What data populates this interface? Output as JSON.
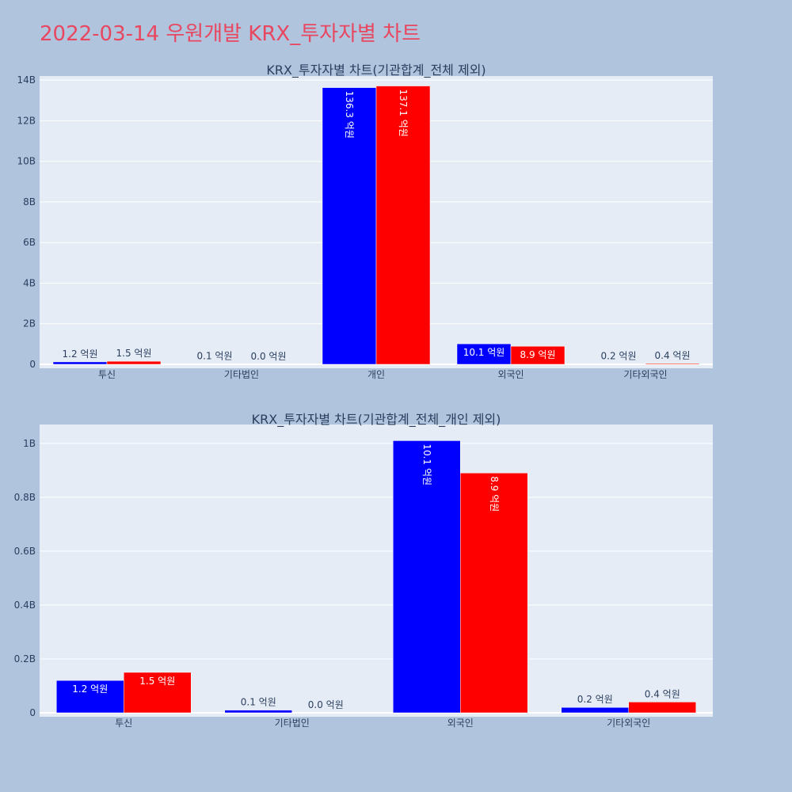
{
  "page": {
    "title": "2022-03-14 우원개발 KRX_투자자별 차트"
  },
  "colors": {
    "buy": "#0000ff",
    "sell": "#ff0000",
    "plot_bg": "#e5ecf6",
    "page_bg": "#b0c4de",
    "title": "#e8475f"
  },
  "chart_data": [
    {
      "type": "bar",
      "title": "KRX_투자자별 차트(기관합계_전체 제외)",
      "categories": [
        "투신",
        "기타법인",
        "개인",
        "외국인",
        "기타외국인"
      ],
      "series": [
        {
          "values": [
            0.12,
            0.01,
            13.63,
            1.01,
            0.02
          ],
          "labels": [
            "1.2 억원",
            "0.1 억원",
            "136.3 억원",
            "10.1 억원",
            "0.2 억원"
          ]
        },
        {
          "values": [
            0.15,
            0.0,
            13.71,
            0.89,
            0.04
          ],
          "labels": [
            "1.5 억원",
            "0.0 억원",
            "137.1 억원",
            "8.9 억원",
            "0.4 억원"
          ]
        }
      ],
      "unit": "B",
      "ylim": [
        0,
        14.2
      ],
      "yticks": [
        0,
        2,
        4,
        6,
        8,
        10,
        12,
        14
      ],
      "ytick_labels": [
        "0",
        "2B",
        "4B",
        "6B",
        "8B",
        "10B",
        "12B",
        "14B"
      ],
      "grid": true,
      "legend": "none"
    },
    {
      "type": "bar",
      "title": "KRX_투자자별 차트(기관합계_전체_개인 제외)",
      "categories": [
        "투신",
        "기타법인",
        "외국인",
        "기타외국인"
      ],
      "series": [
        {
          "values": [
            0.12,
            0.01,
            1.01,
            0.02
          ],
          "labels": [
            "1.2 억원",
            "0.1 억원",
            "10.1 억원",
            "0.2 억원"
          ]
        },
        {
          "values": [
            0.15,
            0.0,
            0.89,
            0.04
          ],
          "labels": [
            "1.5 억원",
            "0.0 억원",
            "8.9 억원",
            "0.4 억원"
          ]
        }
      ],
      "unit": "B",
      "ylim": [
        0,
        1.07
      ],
      "yticks": [
        0,
        0.2,
        0.4,
        0.6,
        0.8,
        1.0
      ],
      "ytick_labels": [
        "0",
        "0.2B",
        "0.4B",
        "0.6B",
        "0.8B",
        "1B"
      ],
      "grid": true,
      "legend": "none"
    }
  ]
}
